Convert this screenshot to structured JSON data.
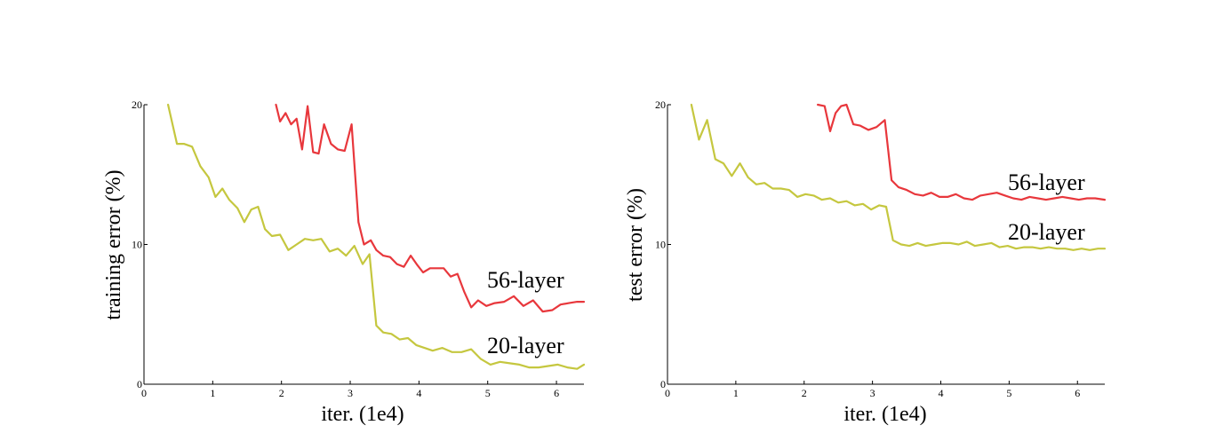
{
  "chart_data": [
    {
      "type": "line",
      "xlabel": "iter. (1e4)",
      "ylabel": "training error (%)",
      "xlim": [
        0,
        6.4
      ],
      "ylim": [
        0,
        20
      ],
      "xticks": [
        "0",
        "1",
        "2",
        "3",
        "4",
        "5",
        "6"
      ],
      "yticks": [
        "0",
        "10",
        "20"
      ],
      "grid": false,
      "series": [
        {
          "name": "56-layer",
          "color": "#e8373c",
          "x": [
            1.92,
            1.98,
            2.06,
            2.14,
            2.22,
            2.3,
            2.38,
            2.46,
            2.54,
            2.62,
            2.72,
            2.82,
            2.92,
            3.02,
            3.12,
            3.2,
            3.3,
            3.38,
            3.48,
            3.58,
            3.68,
            3.78,
            3.88,
            3.98,
            4.06,
            4.16,
            4.26,
            4.36,
            4.46,
            4.56,
            4.66,
            4.76,
            4.86,
            4.98,
            5.1,
            5.24,
            5.38,
            5.52,
            5.66,
            5.8,
            5.94,
            6.06,
            6.18,
            6.3,
            6.4
          ],
          "y": [
            20.0,
            18.8,
            19.4,
            18.6,
            19.0,
            16.8,
            19.9,
            16.6,
            16.5,
            18.6,
            17.2,
            16.8,
            16.7,
            18.6,
            11.6,
            10.0,
            10.3,
            9.6,
            9.2,
            9.1,
            8.6,
            8.4,
            9.2,
            8.5,
            8.0,
            8.3,
            8.3,
            8.3,
            7.7,
            7.9,
            6.6,
            5.5,
            6.0,
            5.6,
            5.8,
            5.9,
            6.3,
            5.6,
            6.0,
            5.2,
            5.3,
            5.7,
            5.8,
            5.9,
            5.9
          ]
        },
        {
          "name": "20-layer",
          "color": "#c5c73f",
          "x": [
            0.35,
            0.48,
            0.58,
            0.7,
            0.82,
            0.94,
            1.04,
            1.14,
            1.24,
            1.36,
            1.46,
            1.56,
            1.66,
            1.76,
            1.86,
            1.98,
            2.1,
            2.22,
            2.34,
            2.46,
            2.58,
            2.7,
            2.82,
            2.94,
            3.06,
            3.18,
            3.28,
            3.38,
            3.48,
            3.6,
            3.72,
            3.84,
            3.96,
            4.08,
            4.2,
            4.34,
            4.48,
            4.62,
            4.76,
            4.9,
            5.04,
            5.18,
            5.32,
            5.46,
            5.6,
            5.74,
            5.88,
            6.02,
            6.16,
            6.3,
            6.4
          ],
          "y": [
            20.0,
            17.2,
            17.2,
            17.0,
            15.6,
            14.8,
            13.4,
            14.0,
            13.2,
            12.6,
            11.6,
            12.5,
            12.7,
            11.1,
            10.6,
            10.7,
            9.6,
            10.0,
            10.4,
            10.3,
            10.4,
            9.5,
            9.7,
            9.2,
            9.9,
            8.6,
            9.3,
            4.2,
            3.7,
            3.6,
            3.2,
            3.3,
            2.8,
            2.6,
            2.4,
            2.6,
            2.3,
            2.3,
            2.5,
            1.8,
            1.4,
            1.6,
            1.5,
            1.4,
            1.2,
            1.2,
            1.3,
            1.4,
            1.2,
            1.1,
            1.4
          ]
        }
      ]
    },
    {
      "type": "line",
      "xlabel": "iter. (1e4)",
      "ylabel": "test error (%)",
      "xlim": [
        0,
        6.4
      ],
      "ylim": [
        0,
        20
      ],
      "xticks": [
        "0",
        "1",
        "2",
        "3",
        "4",
        "5",
        "6"
      ],
      "yticks": [
        "0",
        "10",
        "20"
      ],
      "grid": false,
      "series": [
        {
          "name": "56-layer",
          "color": "#e8373c",
          "x": [
            2.2,
            2.3,
            2.38,
            2.46,
            2.54,
            2.62,
            2.72,
            2.82,
            2.94,
            3.06,
            3.18,
            3.28,
            3.38,
            3.5,
            3.62,
            3.74,
            3.86,
            3.98,
            4.1,
            4.22,
            4.34,
            4.46,
            4.58,
            4.7,
            4.82,
            4.94,
            5.06,
            5.18,
            5.3,
            5.42,
            5.54,
            5.66,
            5.78,
            5.9,
            6.02,
            6.14,
            6.26,
            6.4
          ],
          "y": [
            20.0,
            19.9,
            18.1,
            19.4,
            19.9,
            20.0,
            18.6,
            18.5,
            18.2,
            18.4,
            18.9,
            14.6,
            14.1,
            13.9,
            13.6,
            13.5,
            13.7,
            13.4,
            13.4,
            13.6,
            13.3,
            13.2,
            13.5,
            13.6,
            13.7,
            13.5,
            13.3,
            13.2,
            13.4,
            13.3,
            13.2,
            13.3,
            13.4,
            13.3,
            13.2,
            13.3,
            13.3,
            13.2
          ]
        },
        {
          "name": "20-layer",
          "color": "#c5c73f",
          "x": [
            0.35,
            0.46,
            0.58,
            0.7,
            0.82,
            0.94,
            1.06,
            1.18,
            1.3,
            1.42,
            1.54,
            1.66,
            1.78,
            1.9,
            2.02,
            2.14,
            2.26,
            2.38,
            2.5,
            2.62,
            2.74,
            2.86,
            2.98,
            3.1,
            3.2,
            3.3,
            3.42,
            3.54,
            3.66,
            3.78,
            3.9,
            4.02,
            4.14,
            4.26,
            4.38,
            4.5,
            4.62,
            4.74,
            4.86,
            4.98,
            5.1,
            5.22,
            5.34,
            5.46,
            5.58,
            5.7,
            5.82,
            5.94,
            6.06,
            6.18,
            6.3,
            6.4
          ],
          "y": [
            20.0,
            17.5,
            18.9,
            16.1,
            15.8,
            14.9,
            15.8,
            14.8,
            14.3,
            14.4,
            14.0,
            14.0,
            13.9,
            13.4,
            13.6,
            13.5,
            13.2,
            13.3,
            13.0,
            13.1,
            12.8,
            12.9,
            12.5,
            12.8,
            12.7,
            10.3,
            10.0,
            9.9,
            10.1,
            9.9,
            10.0,
            10.1,
            10.1,
            10.0,
            10.2,
            9.9,
            10.0,
            10.1,
            9.8,
            9.9,
            9.7,
            9.8,
            9.8,
            9.7,
            9.8,
            9.7,
            9.7,
            9.6,
            9.7,
            9.6,
            9.7,
            9.7
          ]
        }
      ]
    }
  ]
}
